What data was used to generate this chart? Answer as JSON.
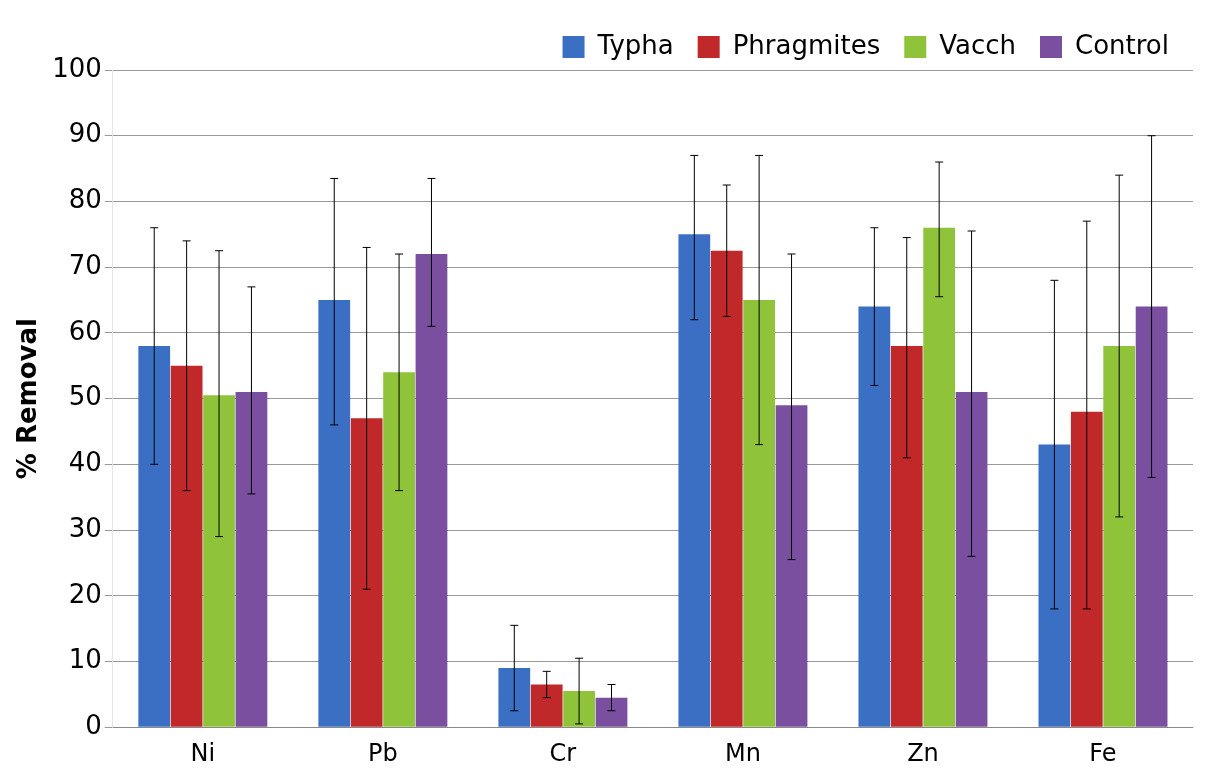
{
  "chart_data": {
    "type": "bar",
    "ylabel": "% Removal",
    "categories": [
      "Ni",
      "Pb",
      "Cr",
      "Mn",
      "Zn",
      "Fe"
    ],
    "series": [
      {
        "name": "Typha",
        "color": "#3b6fc4",
        "values": [
          58,
          65,
          9,
          75,
          64,
          43
        ],
        "errors": [
          [
            40,
            76
          ],
          [
            46,
            83.5
          ],
          [
            2.5,
            15.5
          ],
          [
            62,
            87
          ],
          [
            52,
            76
          ],
          [
            18,
            68
          ]
        ]
      },
      {
        "name": "Phragmites",
        "color": "#c0282a",
        "values": [
          55,
          47,
          6.5,
          72.5,
          58,
          48
        ],
        "errors": [
          [
            36,
            74
          ],
          [
            21,
            73
          ],
          [
            4.5,
            8.5
          ],
          [
            62.5,
            82.5
          ],
          [
            41,
            74.5
          ],
          [
            18,
            77
          ]
        ]
      },
      {
        "name": "Vacch",
        "color": "#8fc43a",
        "values": [
          50.5,
          54,
          5.5,
          65,
          76,
          58
        ],
        "errors": [
          [
            29,
            72.5
          ],
          [
            36,
            72
          ],
          [
            0.5,
            10.5
          ],
          [
            43,
            87
          ],
          [
            65.5,
            86
          ],
          [
            32,
            84
          ]
        ]
      },
      {
        "name": "Control",
        "color": "#7a4fa0",
        "values": [
          51,
          72,
          4.5,
          49,
          51,
          64
        ],
        "errors": [
          [
            35.5,
            67
          ],
          [
            61,
            83.5
          ],
          [
            2.5,
            6.5
          ],
          [
            25.5,
            72
          ],
          [
            26,
            75.5
          ],
          [
            38,
            90
          ]
        ]
      }
    ],
    "ylim": [
      0,
      100
    ],
    "yticks": [
      0,
      10,
      20,
      30,
      40,
      50,
      60,
      70,
      80,
      90,
      100
    ],
    "grid": "y",
    "legend": "top right"
  }
}
